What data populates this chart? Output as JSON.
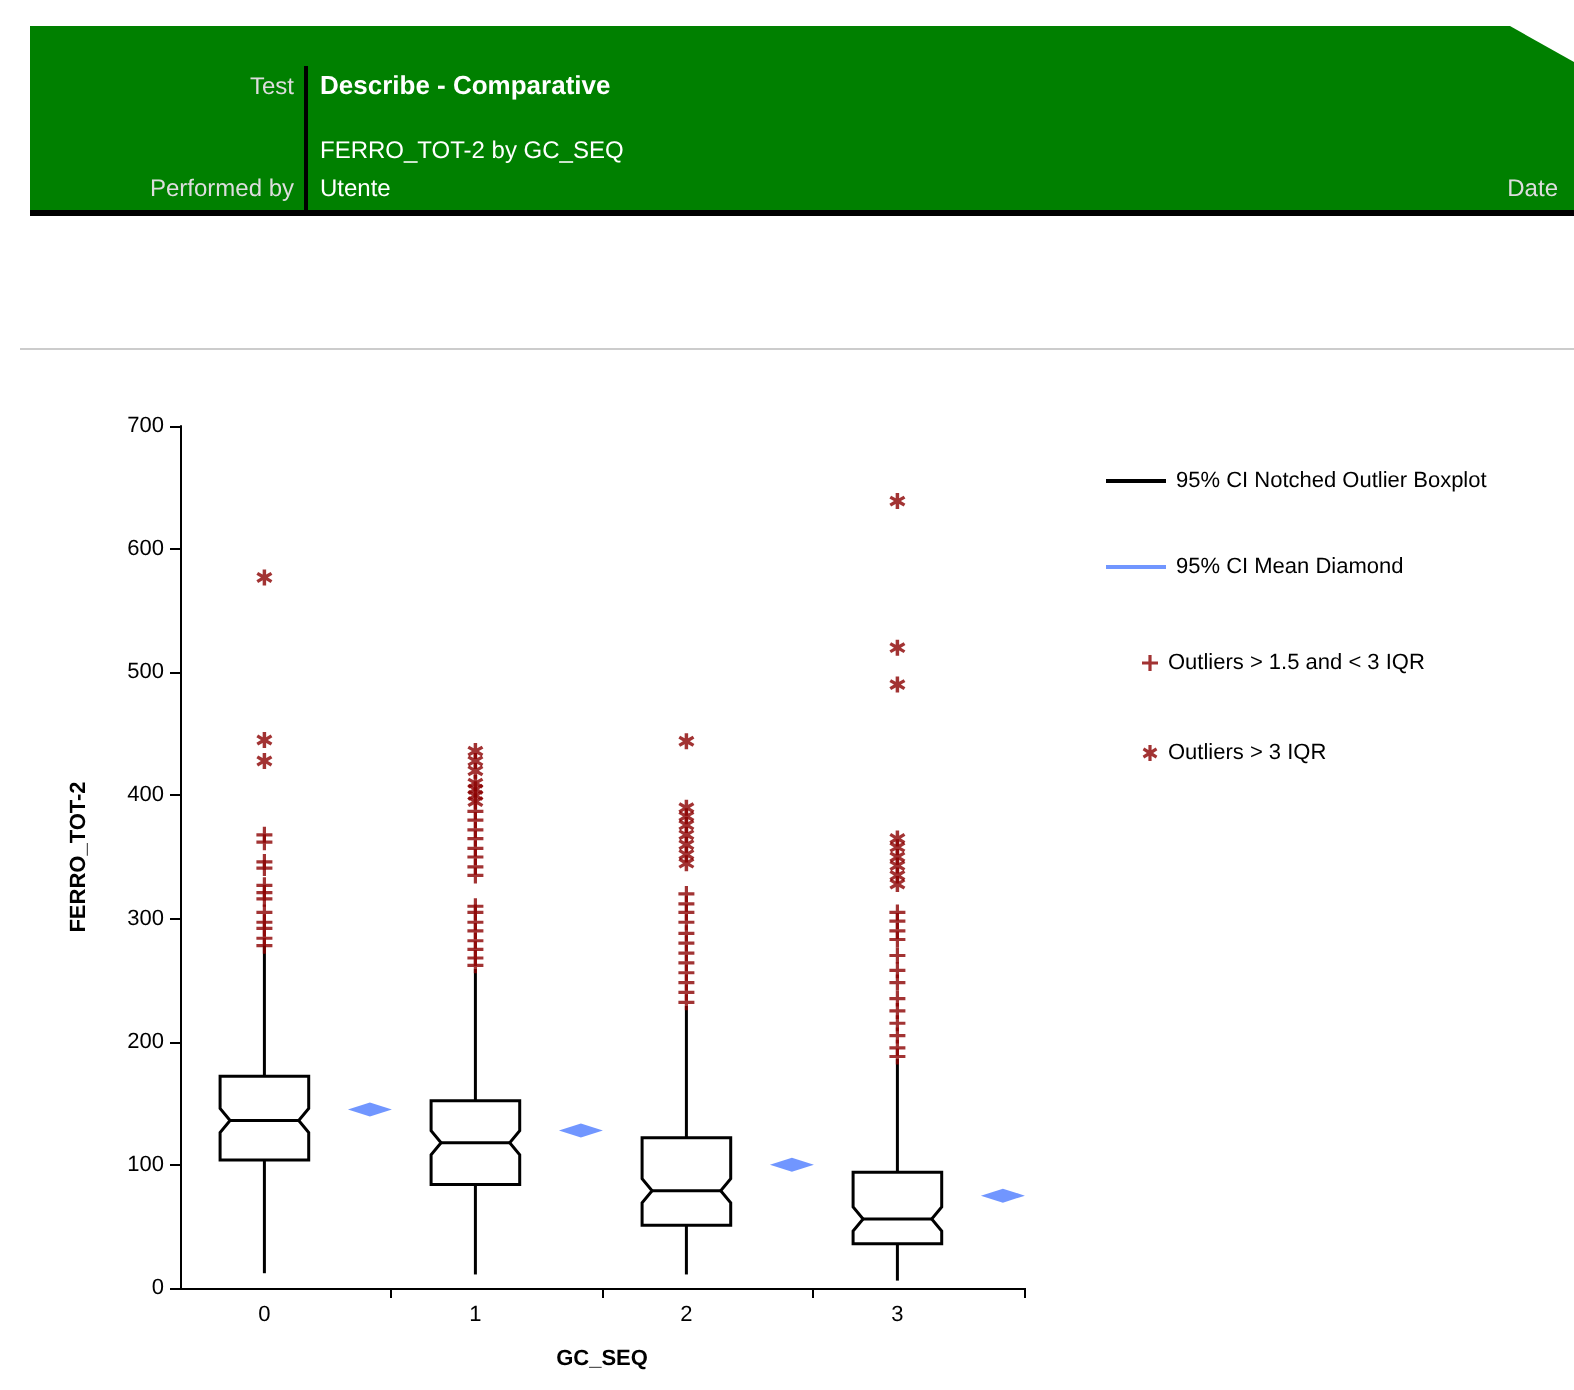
{
  "chart_data": {
    "type": "box",
    "title": "Describe - Comparative",
    "subtitle": "FERRO_TOT-2 by GC_SEQ",
    "annotations": [
      "Test",
      "Performed by",
      "Utente",
      "Date"
    ],
    "xlabel": "GC_SEQ",
    "ylabel": "FERRO_TOT-2",
    "xlim": [
      -0.4,
      3.6
    ],
    "xticks": [
      0,
      1,
      2,
      3,
      {
        "value": 0.6,
        "label": null
      },
      {
        "value": 1.6,
        "label": null
      },
      {
        "value": 2.6,
        "label": null
      },
      {
        "value": 3.6,
        "label": null
      }
    ],
    "ylim": [
      0,
      700
    ],
    "yticks": [
      0,
      100,
      200,
      300,
      400,
      500,
      600,
      700
    ],
    "legend": "right",
    "series": [
      {
        "name": "95% CI Notched Outlier Boxplot",
        "color": "#000000",
        "x": [
          0,
          1,
          2,
          3
        ],
        "boxes": [
          {
            "low": 12,
            "q1": 104,
            "median": 136,
            "q3": 172,
            "high": 278
          },
          {
            "low": 11,
            "q1": 84,
            "median": 118,
            "q3": 152,
            "high": 259
          },
          {
            "low": 11,
            "q1": 51,
            "median": 79,
            "q3": 122,
            "high": 229
          },
          {
            "low": 6,
            "q1": 36,
            "median": 56,
            "q3": 94,
            "high": 186
          }
        ]
      },
      {
        "type": "scatter",
        "name": "95% CI Mean Diamond",
        "color": "#4d7cff",
        "marker": "diamond",
        "x": [
          0.5,
          1.5,
          2.5,
          3.5
        ],
        "values": [
          145,
          128,
          100,
          75
        ]
      },
      {
        "type": "scatter",
        "name": "Outliers > 1.5 and < 3 IQR",
        "color": "#8b0000",
        "marker": "cross",
        "x": [
          0,
          0,
          0,
          0,
          0,
          0,
          0,
          0,
          0,
          0,
          0,
          0,
          1,
          1,
          1,
          1,
          1,
          1,
          1,
          1,
          1,
          1,
          1,
          1,
          1,
          1,
          1,
          1,
          2,
          2,
          2,
          2,
          2,
          2,
          2,
          2,
          2,
          2,
          2,
          2,
          3,
          3,
          3,
          3,
          3,
          3,
          3,
          3,
          3,
          3,
          3,
          3,
          3
        ],
        "values": [
          278,
          284,
          292,
          297,
          305,
          316,
          321,
          327,
          341,
          346,
          362,
          368,
          262,
          268,
          275,
          282,
          290,
          297,
          305,
          310,
          335,
          342,
          350,
          357,
          365,
          372,
          380,
          387,
          320,
          312,
          305,
          297,
          288,
          280,
          272,
          264,
          256,
          248,
          240,
          232,
          305,
          298,
          290,
          283,
          270,
          258,
          248,
          235,
          225,
          215,
          205,
          195,
          188
        ]
      },
      {
        "type": "scatter",
        "name": "Outliers > 3 IQR",
        "color": "#8b0000",
        "marker": "star",
        "x": [
          0,
          0,
          0,
          1,
          1,
          1,
          1,
          1,
          1,
          1,
          2,
          2,
          2,
          2,
          2,
          2,
          2,
          2,
          3,
          3,
          3,
          3,
          3,
          3,
          3,
          3,
          3
        ],
        "values": [
          577,
          445,
          428,
          395,
          400,
          405,
          410,
          420,
          428,
          436,
          444,
          390,
          383,
          376,
          368,
          360,
          352,
          345,
          639,
          520,
          490,
          365,
          358,
          350,
          343,
          335,
          328
        ]
      }
    ]
  }
}
